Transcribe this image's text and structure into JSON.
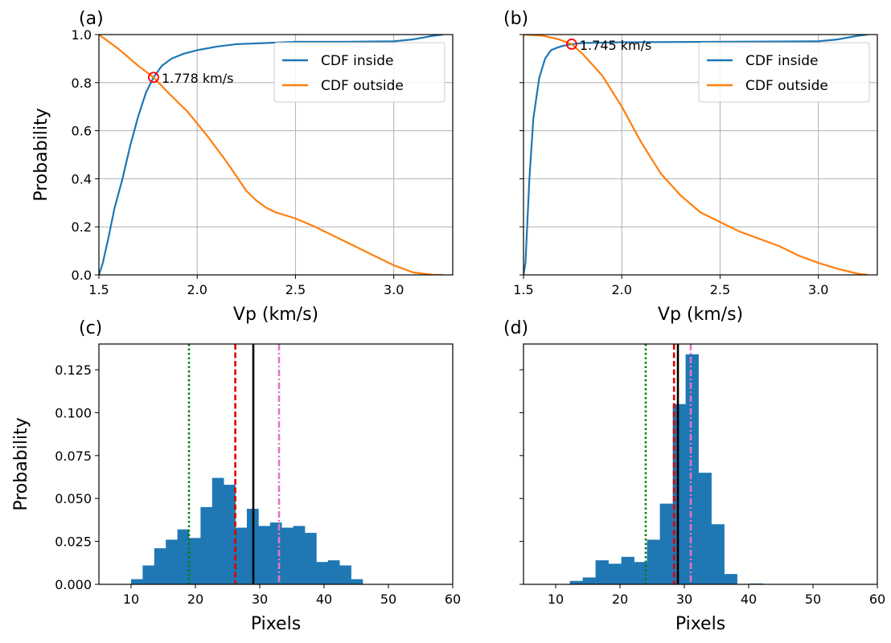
{
  "chart_data": [
    {
      "panel": "(a)",
      "type": "line",
      "xlabel": "Vp (km/s)",
      "ylabel": "Probability",
      "xlim": [
        1.5,
        3.3
      ],
      "ylim": [
        0.0,
        1.0
      ],
      "xticks": [
        1.5,
        2.0,
        2.5,
        3.0
      ],
      "xtick_labels": [
        "1.5",
        "2.0",
        "2.5",
        "3.0"
      ],
      "yticks": [
        0.0,
        0.2,
        0.4,
        0.6,
        0.8,
        1.0
      ],
      "ytick_labels": [
        "0.0",
        "0.2",
        "0.4",
        "0.6",
        "0.8",
        "1.0"
      ],
      "grid": true,
      "legend_position": "top-right",
      "series": [
        {
          "name": "CDF inside",
          "color": "#1f77b4",
          "x": [
            1.5,
            1.52,
            1.55,
            1.58,
            1.62,
            1.66,
            1.7,
            1.74,
            1.778,
            1.82,
            1.87,
            1.93,
            2.0,
            2.1,
            2.2,
            2.35,
            2.5,
            2.75,
            3.0,
            3.1,
            3.2,
            3.25
          ],
          "y": [
            0.0,
            0.05,
            0.16,
            0.28,
            0.4,
            0.54,
            0.66,
            0.76,
            0.822,
            0.87,
            0.9,
            0.92,
            0.935,
            0.95,
            0.96,
            0.965,
            0.97,
            0.97,
            0.972,
            0.98,
            0.995,
            1.0
          ]
        },
        {
          "name": "CDF outside",
          "color": "#ff7f0e",
          "x": [
            1.5,
            1.6,
            1.7,
            1.778,
            1.85,
            1.95,
            2.05,
            2.15,
            2.25,
            2.3,
            2.35,
            2.4,
            2.5,
            2.6,
            2.7,
            2.8,
            2.9,
            3.0,
            3.1,
            3.2,
            3.25
          ],
          "y": [
            1.0,
            0.94,
            0.87,
            0.822,
            0.76,
            0.68,
            0.58,
            0.47,
            0.35,
            0.31,
            0.28,
            0.26,
            0.235,
            0.2,
            0.16,
            0.12,
            0.08,
            0.04,
            0.01,
            0.0,
            0.0
          ]
        }
      ],
      "marker": {
        "x": 1.778,
        "y": 0.822,
        "label": "1.778 km/s",
        "color": "#ff0000"
      }
    },
    {
      "panel": "(b)",
      "type": "line",
      "xlabel": "Vp (km/s)",
      "ylabel": "",
      "xlim": [
        1.5,
        3.3
      ],
      "ylim": [
        0.0,
        1.0
      ],
      "xticks": [
        1.5,
        2.0,
        2.5,
        3.0
      ],
      "xtick_labels": [
        "1.5",
        "2.0",
        "2.5",
        "3.0"
      ],
      "yticks": [
        0.0,
        0.2,
        0.4,
        0.6,
        0.8,
        1.0
      ],
      "ytick_labels": [],
      "grid": true,
      "legend_position": "top-right",
      "series": [
        {
          "name": "CDF inside",
          "color": "#1f77b4",
          "x": [
            1.5,
            1.51,
            1.53,
            1.55,
            1.58,
            1.61,
            1.64,
            1.67,
            1.7,
            1.745,
            1.8,
            2.0,
            2.5,
            3.0,
            3.1,
            3.2,
            3.25
          ],
          "y": [
            0.0,
            0.05,
            0.4,
            0.65,
            0.82,
            0.9,
            0.935,
            0.945,
            0.953,
            0.96,
            0.965,
            0.968,
            0.97,
            0.972,
            0.98,
            0.995,
            1.0
          ]
        },
        {
          "name": "CDF outside",
          "color": "#ff7f0e",
          "x": [
            1.5,
            1.6,
            1.68,
            1.745,
            1.8,
            1.9,
            2.0,
            2.1,
            2.2,
            2.3,
            2.4,
            2.5,
            2.6,
            2.7,
            2.8,
            2.9,
            3.0,
            3.1,
            3.2,
            3.25
          ],
          "y": [
            1.0,
            0.995,
            0.98,
            0.96,
            0.92,
            0.83,
            0.7,
            0.55,
            0.42,
            0.33,
            0.26,
            0.22,
            0.18,
            0.15,
            0.12,
            0.08,
            0.05,
            0.025,
            0.005,
            0.0
          ]
        }
      ],
      "marker": {
        "x": 1.745,
        "y": 0.96,
        "label": "1.745 km/s",
        "color": "#ff0000"
      }
    },
    {
      "panel": "(c)",
      "type": "bar",
      "xlabel": "Pixels",
      "ylabel": "Probability",
      "xlim": [
        5,
        60
      ],
      "ylim": [
        0.0,
        0.14
      ],
      "xticks": [
        10,
        20,
        30,
        40,
        50,
        60
      ],
      "xtick_labels": [
        "10",
        "20",
        "30",
        "40",
        "50",
        "60"
      ],
      "yticks": [
        0.0,
        0.025,
        0.05,
        0.075,
        0.1,
        0.125
      ],
      "ytick_labels": [
        "0.000",
        "0.025",
        "0.050",
        "0.075",
        "0.100",
        "0.125"
      ],
      "grid": false,
      "bar_color": "#1f77b4",
      "bin_edges": [
        10,
        11.8,
        13.6,
        15.4,
        17.2,
        19,
        20.8,
        22.6,
        24.4,
        26.2,
        28,
        29.8,
        31.6,
        33.4,
        35.2,
        37,
        38.8,
        40.6,
        42.4,
        44.2,
        46
      ],
      "values": [
        0.003,
        0.011,
        0.021,
        0.026,
        0.032,
        0.027,
        0.045,
        0.062,
        0.058,
        0.033,
        0.044,
        0.034,
        0.036,
        0.033,
        0.034,
        0.03,
        0.013,
        0.014,
        0.011,
        0.003
      ],
      "vlines": [
        {
          "x": 19,
          "color": "#008000",
          "style": "dotted"
        },
        {
          "x": 26.2,
          "color": "#e00000",
          "style": "dashed"
        },
        {
          "x": 29,
          "color": "#000000",
          "style": "solid"
        },
        {
          "x": 33,
          "color": "#e377c2",
          "style": "dashdot"
        }
      ]
    },
    {
      "panel": "(d)",
      "type": "bar",
      "xlabel": "Pixels",
      "ylabel": "",
      "xlim": [
        5,
        60
      ],
      "ylim": [
        0.0,
        0.14
      ],
      "xticks": [
        10,
        20,
        30,
        40,
        50,
        60
      ],
      "xtick_labels": [
        "10",
        "20",
        "30",
        "40",
        "50",
        "60"
      ],
      "yticks": [
        0.0,
        0.025,
        0.05,
        0.075,
        0.1,
        0.125
      ],
      "ytick_labels": [],
      "grid": false,
      "bar_color": "#1f77b4",
      "bin_edges": [
        12.2,
        14.2,
        16.2,
        18.2,
        20.2,
        22.2,
        24.2,
        26.2,
        28.2,
        30.2,
        32.2,
        34.2,
        36.2,
        38.2,
        40.2,
        42.2
      ],
      "values": [
        0.002,
        0.004,
        0.014,
        0.012,
        0.016,
        0.013,
        0.026,
        0.047,
        0.105,
        0.134,
        0.065,
        0.035,
        0.006,
        0.0,
        0.0005
      ],
      "vlines": [
        {
          "x": 24,
          "color": "#008000",
          "style": "dotted"
        },
        {
          "x": 28.4,
          "color": "#e00000",
          "style": "dashed"
        },
        {
          "x": 29,
          "color": "#000000",
          "style": "solid"
        },
        {
          "x": 31,
          "color": "#e377c2",
          "style": "dashdot"
        }
      ]
    }
  ]
}
